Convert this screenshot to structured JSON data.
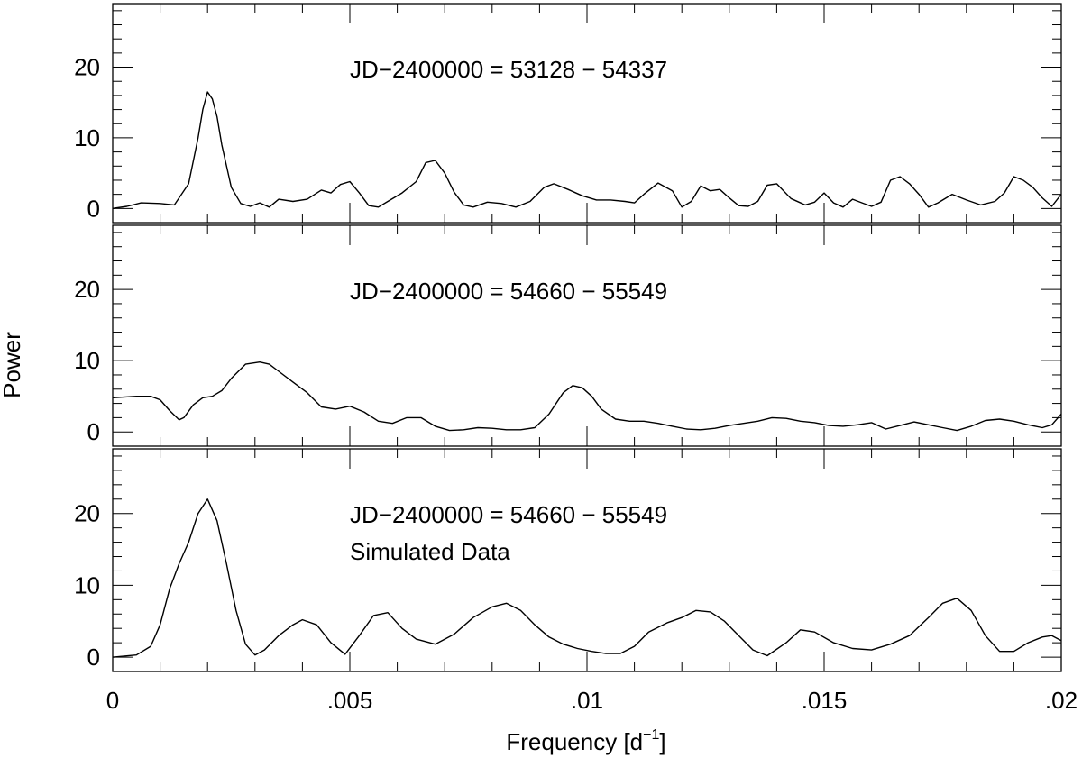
{
  "chart_data": {
    "type": "line",
    "ylabel": "Power",
    "xlabel": "Frequency [d",
    "xlabel_sup": "−1",
    "xlabel_close": "]",
    "xlim": [
      0,
      0.02
    ],
    "x_ticks": [
      "0",
      ".005",
      ".01",
      ".015",
      ".02"
    ],
    "y_ticks": [
      "0",
      "10",
      "20"
    ],
    "panels": [
      {
        "ylim": [
          -2,
          29
        ],
        "annotations": [
          "JD−2400000 = 53128 − 54337"
        ],
        "series": [
          {
            "x": [
              0,
              0.0003,
              0.0006,
              0.001,
              0.0013,
              0.0016,
              0.0018,
              0.0019,
              0.002,
              0.0021,
              0.0022,
              0.0023,
              0.0025,
              0.0027,
              0.0029,
              0.0031,
              0.0033,
              0.0035,
              0.0038,
              0.0041,
              0.0044,
              0.0046,
              0.0048,
              0.005,
              0.0052,
              0.0054,
              0.0056,
              0.0058,
              0.0061,
              0.0064,
              0.0066,
              0.0068,
              0.007,
              0.0072,
              0.0074,
              0.0076,
              0.0079,
              0.0082,
              0.0085,
              0.0088,
              0.0091,
              0.0093,
              0.0096,
              0.0099,
              0.0102,
              0.0105,
              0.0108,
              0.011,
              0.0112,
              0.0115,
              0.0118,
              0.012,
              0.0122,
              0.0124,
              0.0126,
              0.0128,
              0.013,
              0.0132,
              0.0134,
              0.0136,
              0.0138,
              0.014,
              0.0143,
              0.0146,
              0.0148,
              0.015,
              0.0152,
              0.0154,
              0.0156,
              0.0158,
              0.016,
              0.0162,
              0.0164,
              0.0166,
              0.0168,
              0.017,
              0.0172,
              0.0174,
              0.0177,
              0.018,
              0.0183,
              0.0186,
              0.0188,
              0.019,
              0.0192,
              0.0194,
              0.0196,
              0.0198,
              0.02
            ],
            "y": [
              0,
              0.3,
              0.8,
              0.7,
              0.5,
              3.5,
              10,
              14,
              16.5,
              15.5,
              13,
              9,
              3,
              0.7,
              0.3,
              0.8,
              0.2,
              1.3,
              1.0,
              1.3,
              2.6,
              2.2,
              3.4,
              3.8,
              2.2,
              0.4,
              0.2,
              1.0,
              2.2,
              3.8,
              6.5,
              6.8,
              5.0,
              2.3,
              0.5,
              0.2,
              0.9,
              0.7,
              0.2,
              1.0,
              3.0,
              3.5,
              2.7,
              1.8,
              1.2,
              1.2,
              1.0,
              0.8,
              2.0,
              3.6,
              2.5,
              0.2,
              1.0,
              3.2,
              2.5,
              2.7,
              1.5,
              0.4,
              0.3,
              1.0,
              3.3,
              3.5,
              1.4,
              0.5,
              0.9,
              2.2,
              0.8,
              0.2,
              1.3,
              0.8,
              0.3,
              0.9,
              4.0,
              4.5,
              3.5,
              2.0,
              0.2,
              0.8,
              2.0,
              1.2,
              0.5,
              1.0,
              2.2,
              4.5,
              4.0,
              3.0,
              1.5,
              0.3,
              2.0
            ]
          }
        ]
      },
      {
        "ylim": [
          -2,
          29
        ],
        "annotations": [
          "JD−2400000 = 54660 − 55549"
        ],
        "series": [
          {
            "x": [
              0,
              0.0005,
              0.0008,
              0.001,
              0.0012,
              0.0014,
              0.0015,
              0.0017,
              0.0019,
              0.0021,
              0.0023,
              0.0025,
              0.0028,
              0.0031,
              0.0033,
              0.0035,
              0.0038,
              0.0041,
              0.0044,
              0.0047,
              0.005,
              0.0053,
              0.0056,
              0.0059,
              0.0062,
              0.0065,
              0.0068,
              0.0071,
              0.0074,
              0.0077,
              0.008,
              0.0083,
              0.0086,
              0.0089,
              0.0092,
              0.0095,
              0.0097,
              0.0099,
              0.0101,
              0.0103,
              0.0106,
              0.0109,
              0.0112,
              0.0115,
              0.0118,
              0.0121,
              0.0124,
              0.0127,
              0.013,
              0.0133,
              0.0136,
              0.0139,
              0.0142,
              0.0145,
              0.0148,
              0.0151,
              0.0154,
              0.0157,
              0.016,
              0.0163,
              0.0166,
              0.0169,
              0.0172,
              0.0175,
              0.0178,
              0.0181,
              0.0184,
              0.0187,
              0.019,
              0.0193,
              0.0196,
              0.0198,
              0.02
            ],
            "y": [
              4.8,
              5.0,
              5.0,
              4.5,
              3.0,
              1.7,
              2.0,
              3.8,
              4.8,
              5.0,
              5.8,
              7.5,
              9.5,
              9.8,
              9.5,
              8.5,
              7.0,
              5.5,
              3.5,
              3.2,
              3.6,
              2.8,
              1.5,
              1.2,
              2.0,
              2.0,
              0.8,
              0.2,
              0.3,
              0.6,
              0.5,
              0.3,
              0.3,
              0.6,
              2.5,
              5.5,
              6.5,
              6.2,
              5.0,
              3.2,
              1.8,
              1.5,
              1.5,
              1.2,
              0.8,
              0.4,
              0.3,
              0.5,
              0.9,
              1.2,
              1.5,
              2.0,
              1.9,
              1.5,
              1.3,
              0.9,
              0.8,
              1.0,
              1.3,
              0.4,
              0.9,
              1.4,
              1.0,
              0.6,
              0.2,
              0.8,
              1.6,
              1.8,
              1.5,
              1.0,
              0.6,
              1.0,
              2.5
            ]
          }
        ]
      },
      {
        "ylim": [
          -2,
          29
        ],
        "annotations": [
          "JD−2400000 = 54660 − 55549",
          "Simulated Data"
        ],
        "series": [
          {
            "x": [
              0,
              0.0005,
              0.0008,
              0.001,
              0.0012,
              0.0014,
              0.0016,
              0.0018,
              0.002,
              0.0022,
              0.0024,
              0.0026,
              0.0028,
              0.003,
              0.0032,
              0.0035,
              0.0038,
              0.004,
              0.0043,
              0.0046,
              0.0049,
              0.0052,
              0.0055,
              0.0058,
              0.0061,
              0.0064,
              0.0068,
              0.0072,
              0.0076,
              0.008,
              0.0083,
              0.0086,
              0.0089,
              0.0092,
              0.0095,
              0.0098,
              0.0101,
              0.0104,
              0.0107,
              0.011,
              0.0113,
              0.0117,
              0.012,
              0.0123,
              0.0126,
              0.0129,
              0.0132,
              0.0135,
              0.0138,
              0.0142,
              0.0145,
              0.0148,
              0.0152,
              0.0156,
              0.016,
              0.0164,
              0.0168,
              0.0172,
              0.0175,
              0.0178,
              0.0181,
              0.0184,
              0.0187,
              0.019,
              0.0193,
              0.0196,
              0.0198,
              0.02
            ],
            "y": [
              0,
              0.3,
              1.5,
              4.5,
              9.5,
              13,
              16,
              20,
              22,
              19,
              13,
              6.5,
              1.8,
              0.3,
              1.0,
              3.0,
              4.5,
              5.2,
              4.5,
              2.0,
              0.4,
              3.0,
              5.8,
              6.2,
              4.0,
              2.5,
              1.8,
              3.2,
              5.5,
              7.0,
              7.5,
              6.5,
              4.5,
              2.8,
              1.8,
              1.2,
              0.8,
              0.5,
              0.5,
              1.5,
              3.5,
              4.8,
              5.5,
              6.5,
              6.3,
              5.0,
              3.0,
              1.0,
              0.2,
              2.0,
              3.8,
              3.5,
              2.0,
              1.2,
              1.0,
              1.8,
              3.0,
              5.5,
              7.5,
              8.2,
              6.5,
              3.0,
              0.8,
              0.8,
              2.0,
              2.8,
              3.0,
              2.3
            ]
          }
        ]
      }
    ]
  }
}
